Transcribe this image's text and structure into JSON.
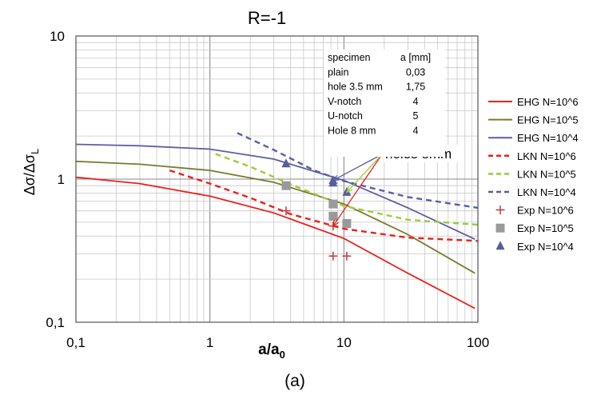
{
  "chart_data": {
    "type": "line",
    "title": "R=-1",
    "caption": "(a)",
    "xlabel": "a/a",
    "xlabel_sub": "0",
    "ylabel": "Δσ/Δσ",
    "ylabel_sub": "L",
    "x_scale": "log",
    "y_scale": "log",
    "xlim": [
      0.1,
      100
    ],
    "ylim": [
      0.1,
      10
    ],
    "x_ticks": [
      {
        "v": 0.1,
        "label": "0,1"
      },
      {
        "v": 1,
        "label": "1"
      },
      {
        "v": 10,
        "label": "10"
      },
      {
        "v": 100,
        "label": "100"
      }
    ],
    "y_ticks": [
      {
        "v": 0.1,
        "label": "0,1"
      },
      {
        "v": 1,
        "label": "1"
      },
      {
        "v": 10,
        "label": "10"
      }
    ],
    "grid": true,
    "legend_position": "right",
    "series": [
      {
        "name": "EHG N=10^6",
        "kind": "line",
        "color": "#e8231e",
        "dash": "none",
        "points": [
          [
            0.1,
            1.03
          ],
          [
            0.3,
            0.93
          ],
          [
            1,
            0.76
          ],
          [
            3,
            0.58
          ],
          [
            10,
            0.385
          ],
          [
            30,
            0.22
          ],
          [
            95,
            0.125
          ]
        ]
      },
      {
        "name": "EHG N=10^5",
        "kind": "line",
        "color": "#7a7c2c",
        "dash": "none",
        "points": [
          [
            0.1,
            1.33
          ],
          [
            0.3,
            1.27
          ],
          [
            1,
            1.15
          ],
          [
            3,
            0.95
          ],
          [
            10,
            0.67
          ],
          [
            30,
            0.41
          ],
          [
            95,
            0.22
          ]
        ]
      },
      {
        "name": "EHG N=10^4",
        "kind": "line",
        "color": "#5b5fa3",
        "dash": "none",
        "points": [
          [
            0.1,
            1.75
          ],
          [
            0.3,
            1.71
          ],
          [
            1,
            1.62
          ],
          [
            3,
            1.38
          ],
          [
            10,
            0.98
          ],
          [
            30,
            0.63
          ],
          [
            95,
            0.38
          ]
        ]
      },
      {
        "name": "LKN N=10^6",
        "kind": "line",
        "color": "#e8231e",
        "dash": "7,5",
        "points": [
          [
            0.5,
            1.15
          ],
          [
            1,
            0.93
          ],
          [
            2,
            0.74
          ],
          [
            4,
            0.57
          ],
          [
            10,
            0.45
          ],
          [
            30,
            0.39
          ],
          [
            100,
            0.37
          ]
        ]
      },
      {
        "name": "LKN N=10^5",
        "kind": "line",
        "color": "#9ccc3c",
        "dash": "7,5",
        "points": [
          [
            1.1,
            1.5
          ],
          [
            2,
            1.22
          ],
          [
            4,
            0.92
          ],
          [
            10,
            0.65
          ],
          [
            30,
            0.52
          ],
          [
            100,
            0.48
          ]
        ]
      },
      {
        "name": "LKN N=10^4",
        "kind": "line",
        "color": "#5b5fa3",
        "dash": "7,5",
        "points": [
          [
            1.6,
            2.1
          ],
          [
            3,
            1.6
          ],
          [
            6,
            1.15
          ],
          [
            10,
            0.97
          ],
          [
            30,
            0.75
          ],
          [
            100,
            0.63
          ]
        ]
      },
      {
        "name": "Exp N=10^6",
        "kind": "marker",
        "marker": "plus",
        "color": "#b83030",
        "points": [
          [
            3.7,
            0.6
          ],
          [
            8.3,
            0.47
          ],
          [
            8.3,
            0.29
          ],
          [
            10.5,
            0.29
          ]
        ]
      },
      {
        "name": "Exp N=10^5",
        "kind": "marker",
        "marker": "square",
        "color": "#9a9a9a",
        "points": [
          [
            3.7,
            0.9
          ],
          [
            8.3,
            0.67
          ],
          [
            8.3,
            0.55
          ],
          [
            10.5,
            0.49
          ]
        ]
      },
      {
        "name": "Exp N=10^4",
        "kind": "marker",
        "marker": "triangle",
        "color": "#565c9c",
        "points": [
          [
            3.7,
            1.28
          ],
          [
            8.3,
            0.98
          ],
          [
            8.3,
            0.94
          ],
          [
            10.5,
            0.81
          ]
        ]
      }
    ],
    "specimen_table": {
      "headers": [
        "specimen",
        "a [mm]"
      ],
      "rows": [
        [
          "plain",
          "0,03"
        ],
        [
          "hole 3.5 mm",
          "1,75"
        ],
        [
          "V-notch",
          "4"
        ],
        [
          "U-notch",
          "5"
        ],
        [
          "Hole 8 mm",
          "4"
        ]
      ]
    },
    "annotation": {
      "text": "holes 8mm",
      "targets": [
        [
          8.3,
          0.98
        ],
        [
          8.3,
          0.47
        ],
        [
          10.5,
          0.81
        ]
      ],
      "target_colors": [
        "#5b5fa3",
        "#e8231e",
        "#9ccc3c"
      ]
    }
  }
}
